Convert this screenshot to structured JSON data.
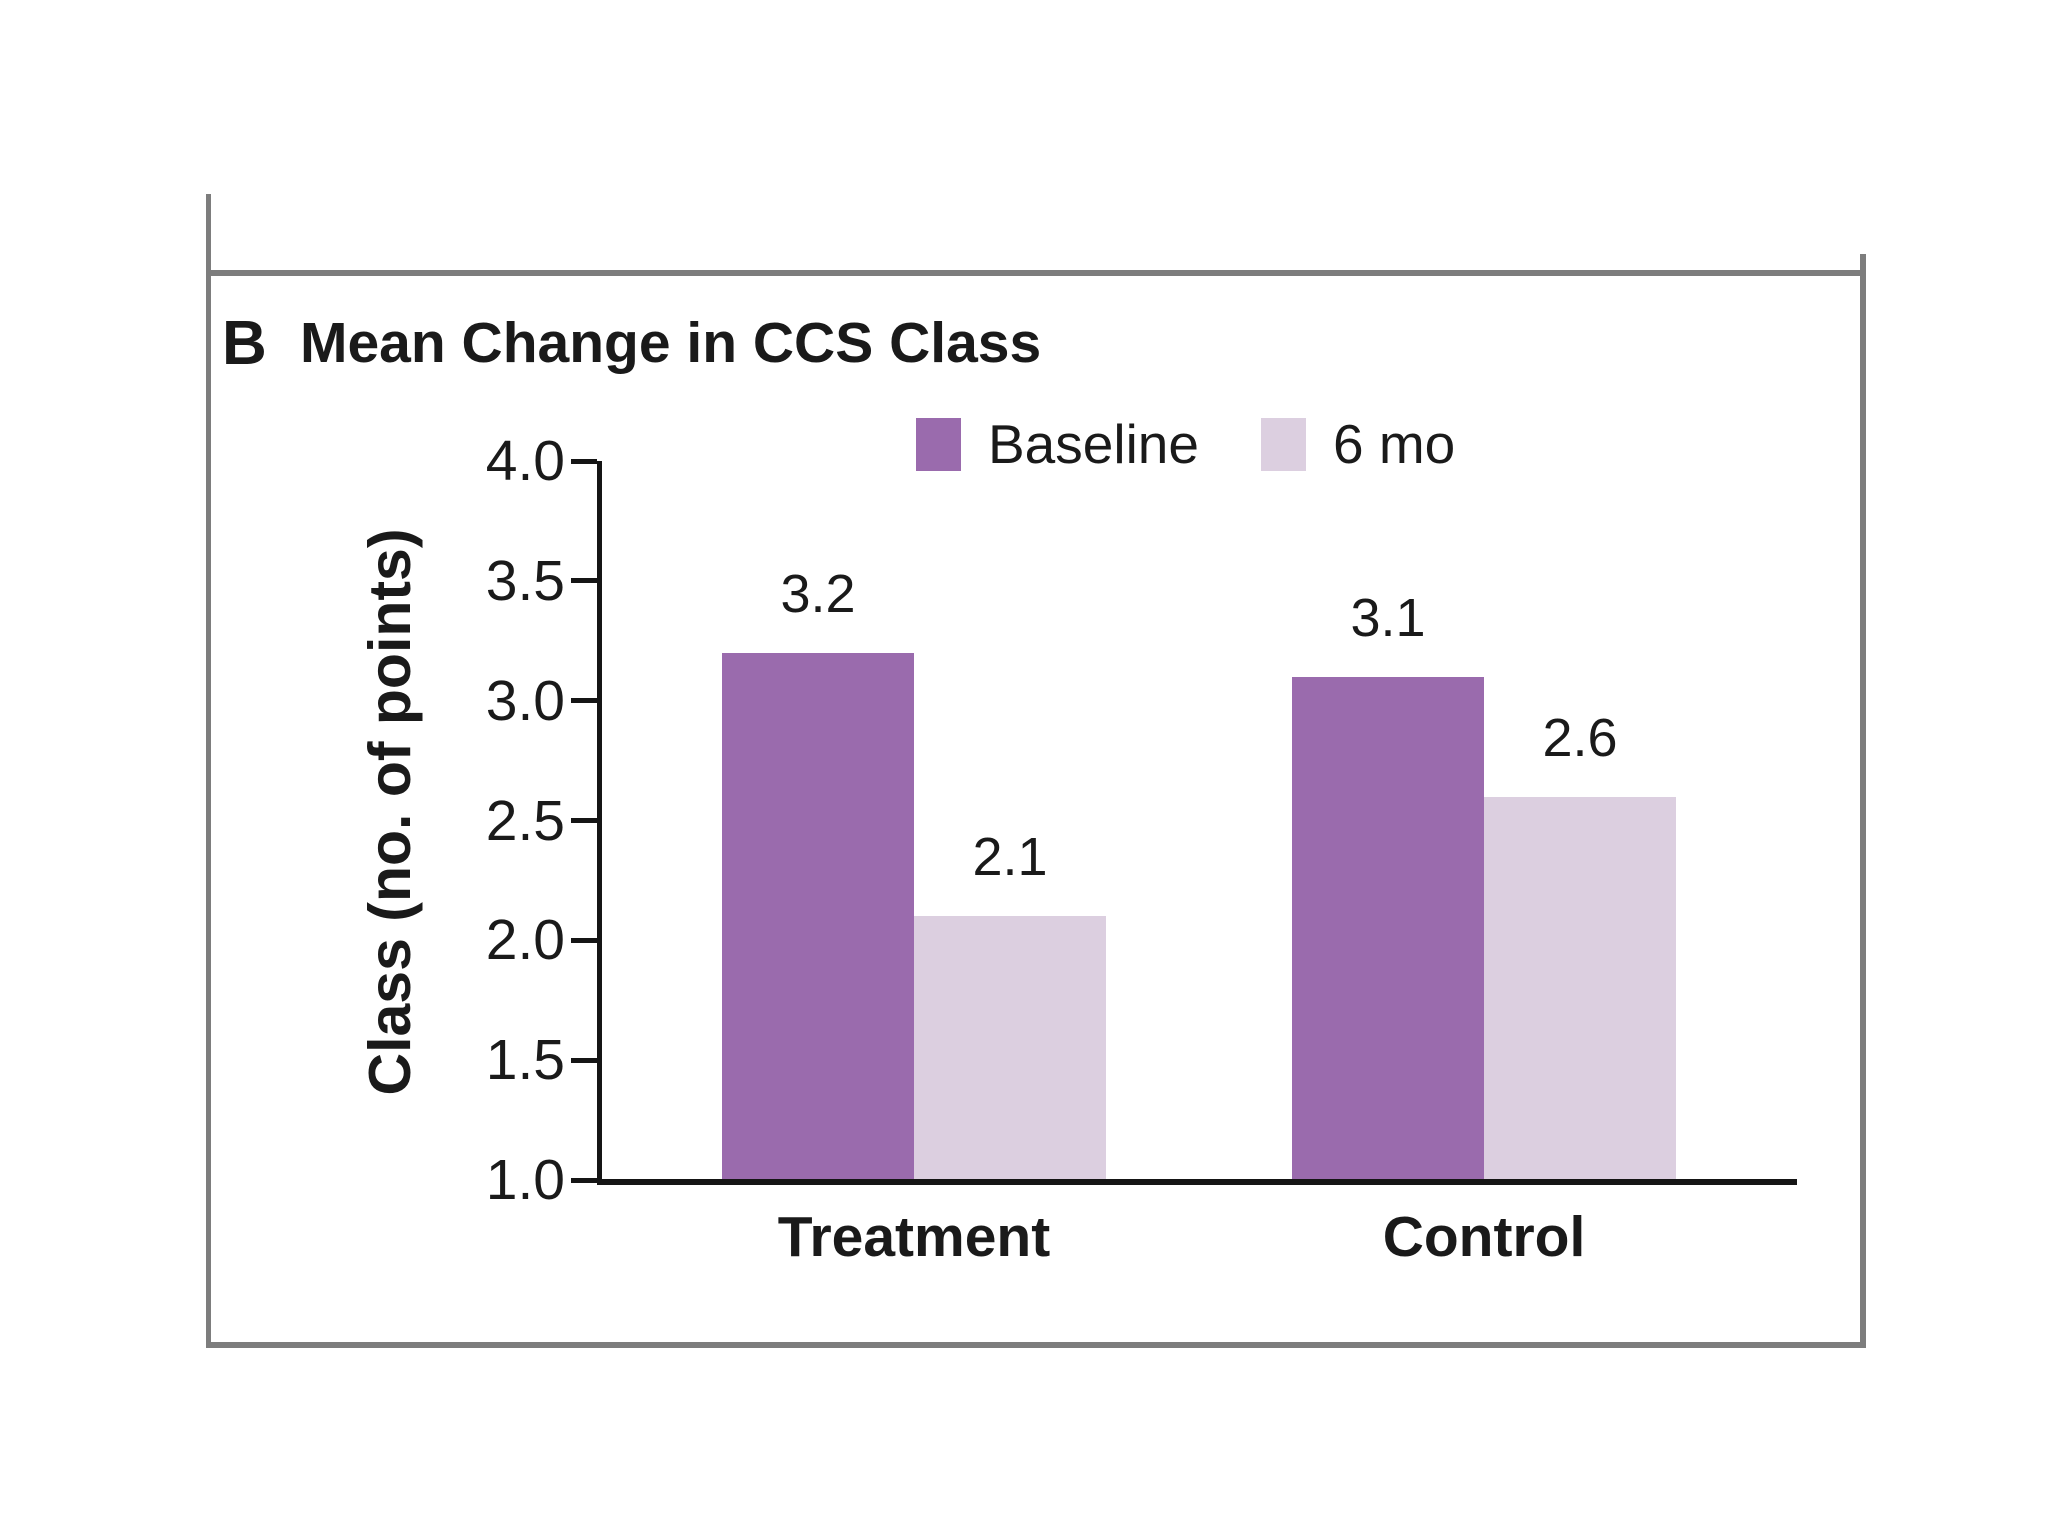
{
  "panel": {
    "label": "B",
    "title": "Mean Change in CCS Class"
  },
  "chart_data": {
    "type": "bar",
    "title": "Mean Change in CCS Class",
    "categories": [
      "Treatment",
      "Control"
    ],
    "series": [
      {
        "name": "Baseline",
        "color": "#9A6BAD",
        "values": [
          3.2,
          3.1
        ]
      },
      {
        "name": "6 mo",
        "color": "#DCCFE0",
        "values": [
          2.1,
          2.6
        ]
      }
    ],
    "xlabel": "",
    "ylabel": "Class (no. of points)",
    "ylim": [
      1.0,
      4.0
    ],
    "yticks": [
      4.0,
      3.5,
      3.0,
      2.5,
      2.0,
      1.5,
      1.0
    ],
    "grid": false,
    "legend_position": "top",
    "value_labels": [
      "3.2",
      "2.1",
      "3.1",
      "2.6"
    ],
    "colors": {
      "baseline_bar": "#9A6BAD",
      "six_mo_bar": "#DCCFE0",
      "axis": "#151515",
      "frame": "#7D7D7D",
      "text": "#1A1A1A"
    }
  }
}
